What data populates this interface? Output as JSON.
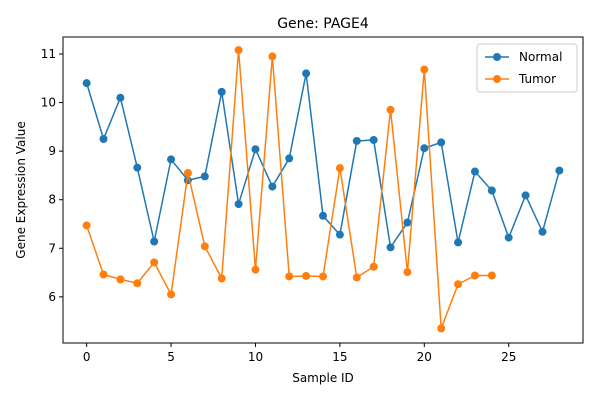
{
  "chart_data": {
    "type": "line",
    "title": "Gene: PAGE4",
    "xlabel": "Sample ID",
    "ylabel": "Gene Expression Value",
    "xlim": [
      -1.4,
      29.4
    ],
    "ylim": [
      5.05,
      11.35
    ],
    "xticks": [
      0,
      5,
      10,
      15,
      20,
      25
    ],
    "yticks": [
      6,
      7,
      8,
      9,
      10,
      11
    ],
    "grid": false,
    "legend_position": "top-right",
    "series": [
      {
        "name": "Normal",
        "color": "#1f77b4",
        "x": [
          0,
          1,
          2,
          3,
          4,
          5,
          6,
          7,
          8,
          9,
          10,
          11,
          12,
          13,
          14,
          15,
          16,
          17,
          18,
          19,
          20,
          21,
          22,
          23,
          24,
          25,
          26,
          27,
          28
        ],
        "values": [
          10.4,
          9.25,
          10.1,
          8.66,
          7.14,
          8.83,
          8.4,
          8.48,
          10.22,
          7.91,
          9.04,
          8.27,
          8.85,
          10.6,
          7.67,
          7.28,
          9.21,
          9.23,
          7.02,
          7.53,
          9.06,
          9.18,
          7.12,
          8.58,
          8.19,
          7.22,
          8.09,
          7.34,
          8.6
        ]
      },
      {
        "name": "Tumor",
        "color": "#ff7f0e",
        "x": [
          0,
          1,
          2,
          3,
          4,
          5,
          6,
          7,
          8,
          9,
          10,
          11,
          12,
          13,
          14,
          15,
          16,
          17,
          18,
          19,
          20,
          21,
          22,
          23,
          24
        ],
        "values": [
          7.47,
          6.46,
          6.36,
          6.28,
          6.71,
          6.05,
          8.55,
          7.04,
          6.38,
          11.08,
          6.56,
          10.95,
          6.42,
          6.43,
          6.42,
          8.65,
          6.4,
          6.62,
          9.85,
          6.51,
          10.68,
          5.35,
          6.26,
          6.44,
          6.44
        ]
      }
    ]
  }
}
